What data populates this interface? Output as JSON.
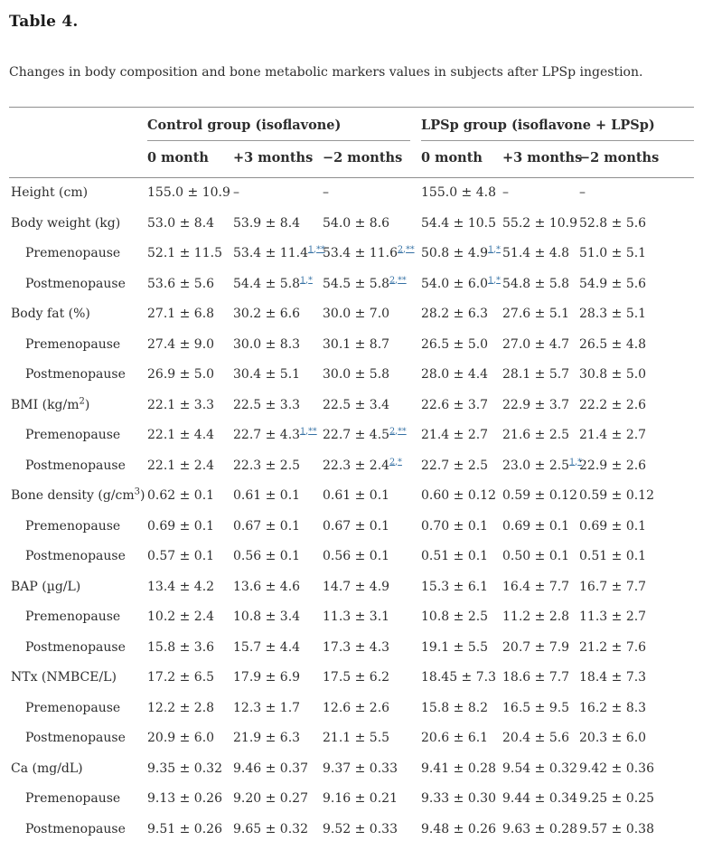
{
  "colors": {
    "text": "#2d2d2d",
    "rule": "#8f8f8f",
    "link": "#3470a4",
    "background": "#ffffff"
  },
  "table": {
    "title": "Table 4.",
    "caption": "Changes in body composition and bone metabolic markers values in subjects after LPSp ingestion.",
    "groups": [
      {
        "label": "Control group (isoflavone)"
      },
      {
        "label": "LPSp group (isoflavone + LPSp)"
      }
    ],
    "columns": [
      "0 month",
      "+3 months",
      "−2 months",
      "0 month",
      "+3 months",
      "−2 months"
    ],
    "rows": [
      {
        "label": {
          "pre": "Height (cm)"
        },
        "indent": false,
        "cells": [
          "155.0 ± 10.9",
          "–",
          "–",
          "155.0 ± 4.8",
          "–",
          "–"
        ]
      },
      {
        "label": {
          "pre": "Body weight (kg)"
        },
        "indent": false,
        "cells": [
          "53.0 ± 8.4",
          "53.9 ± 8.4",
          "54.0 ± 8.6",
          "54.4 ± 10.5",
          "55.2 ± 10.9",
          "52.8 ± 5.6"
        ]
      },
      {
        "label": {
          "pre": "Premenopause"
        },
        "indent": true,
        "cells": [
          "52.1 ± 11.5",
          {
            "t": "53.4 ± 11.4",
            "sup": [
              "1",
              "**"
            ]
          },
          {
            "t": "53.4 ± 11.6",
            "sup": [
              "2",
              "**"
            ]
          },
          {
            "t": "50.8 ± 4.9",
            "sup": [
              "1",
              "*"
            ]
          },
          "51.4 ± 4.8",
          "51.0 ± 5.1"
        ]
      },
      {
        "label": {
          "pre": "Postmenopause"
        },
        "indent": true,
        "cells": [
          "53.6 ± 5.6",
          {
            "t": "54.4 ± 5.8",
            "sup": [
              "1",
              "*"
            ]
          },
          {
            "t": "54.5 ± 5.8",
            "sup": [
              "2",
              "**"
            ]
          },
          {
            "t": "54.0 ± 6.0",
            "sup": [
              "1",
              "*"
            ]
          },
          "54.8 ± 5.8",
          "54.9 ± 5.6"
        ]
      },
      {
        "label": {
          "pre": "Body fat (%)"
        },
        "indent": false,
        "cells": [
          "27.1 ± 6.8",
          "30.2 ± 6.6",
          "30.0 ± 7.0",
          "28.2 ± 6.3",
          "27.6 ± 5.1",
          "28.3 ± 5.1"
        ]
      },
      {
        "label": {
          "pre": "Premenopause"
        },
        "indent": true,
        "cells": [
          "27.4 ± 9.0",
          "30.0 ± 8.3",
          "30.1 ± 8.7",
          "26.5 ± 5.0",
          "27.0 ± 4.7",
          "26.5 ± 4.8"
        ]
      },
      {
        "label": {
          "pre": "Postmenopause"
        },
        "indent": true,
        "cells": [
          "26.9 ± 5.0",
          "30.4 ± 5.1",
          "30.0 ± 5.8",
          "28.0 ± 4.4",
          "28.1 ± 5.7",
          "30.8 ± 5.0"
        ]
      },
      {
        "label": {
          "pre": "BMI (kg/m",
          "sup": "2",
          "post": ")"
        },
        "indent": false,
        "cells": [
          "22.1 ± 3.3",
          "22.5 ± 3.3",
          "22.5 ± 3.4",
          "22.6 ± 3.7",
          "22.9 ± 3.7",
          "22.2 ± 2.6"
        ]
      },
      {
        "label": {
          "pre": "Premenopause"
        },
        "indent": true,
        "cells": [
          "22.1 ± 4.4",
          {
            "t": "22.7 ± 4.3",
            "sup": [
              "1",
              "**"
            ]
          },
          {
            "t": "22.7 ± 4.5",
            "sup": [
              "2",
              "**"
            ]
          },
          "21.4 ± 2.7",
          "21.6 ± 2.5",
          "21.4 ± 2.7"
        ]
      },
      {
        "label": {
          "pre": "Postmenopause"
        },
        "indent": true,
        "cells": [
          "22.1 ± 2.4",
          "22.3 ± 2.5",
          {
            "t": "22.3 ± 2.4",
            "sup": [
              "2",
              "*"
            ]
          },
          "22.7 ± 2.5",
          {
            "t": "23.0 ± 2.5",
            "sup": [
              "1",
              "*"
            ]
          },
          "22.9 ± 2.6"
        ]
      },
      {
        "label": {
          "pre": "Bone density (g/cm",
          "sup": "3",
          "post": ")"
        },
        "indent": false,
        "cells": [
          "0.62 ± 0.1",
          "0.61 ± 0.1",
          "0.61 ± 0.1",
          "0.60 ± 0.12",
          "0.59 ± 0.12",
          "0.59 ± 0.12"
        ]
      },
      {
        "label": {
          "pre": "Premenopause"
        },
        "indent": true,
        "cells": [
          "0.69 ± 0.1",
          "0.67 ± 0.1",
          "0.67 ± 0.1",
          "0.70 ± 0.1",
          "0.69 ± 0.1",
          "0.69 ± 0.1"
        ]
      },
      {
        "label": {
          "pre": "Postmenopause"
        },
        "indent": true,
        "cells": [
          "0.57 ± 0.1",
          "0.56 ± 0.1",
          "0.56 ± 0.1",
          "0.51 ± 0.1",
          "0.50 ± 0.1",
          "0.51 ± 0.1"
        ]
      },
      {
        "label": {
          "pre": "BAP (µg/L)"
        },
        "indent": false,
        "cells": [
          "13.4 ± 4.2",
          "13.6 ± 4.6",
          "14.7 ± 4.9",
          "15.3 ± 6.1",
          "16.4 ± 7.7",
          "16.7 ± 7.7"
        ]
      },
      {
        "label": {
          "pre": "Premenopause"
        },
        "indent": true,
        "cells": [
          "10.2 ± 2.4",
          "10.8 ± 3.4",
          "11.3 ± 3.1",
          "10.8 ± 2.5",
          "11.2 ± 2.8",
          "11.3 ± 2.7"
        ]
      },
      {
        "label": {
          "pre": "Postmenopause"
        },
        "indent": true,
        "cells": [
          "15.8 ± 3.6",
          "15.7 ± 4.4",
          "17.3 ± 4.3",
          "19.1 ± 5.5",
          "20.7 ± 7.9",
          "21.2 ± 7.6"
        ]
      },
      {
        "label": {
          "pre": "NTx (NMBCE/L)"
        },
        "indent": false,
        "cells": [
          "17.2 ± 6.5",
          "17.9 ± 6.9",
          "17.5 ± 6.2",
          "18.45 ± 7.3",
          "18.6 ± 7.7",
          "18.4 ± 7.3"
        ]
      },
      {
        "label": {
          "pre": "Premenopause"
        },
        "indent": true,
        "cells": [
          "12.2 ± 2.8",
          "12.3 ± 1.7",
          "12.6 ± 2.6",
          "15.8 ± 8.2",
          "16.5 ± 9.5",
          "16.2 ± 8.3"
        ]
      },
      {
        "label": {
          "pre": "Postmenopause"
        },
        "indent": true,
        "cells": [
          "20.9 ± 6.0",
          "21.9 ± 6.3",
          "21.1 ± 5.5",
          "20.6 ± 6.1",
          "20.4 ± 5.6",
          "20.3 ± 6.0"
        ]
      },
      {
        "label": {
          "pre": "Ca (mg/dL)"
        },
        "indent": false,
        "cells": [
          "9.35 ± 0.32",
          "9.46 ± 0.37",
          "9.37 ± 0.33",
          "9.41 ± 0.28",
          "9.54 ± 0.32",
          "9.42 ± 0.36"
        ]
      },
      {
        "label": {
          "pre": "Premenopause"
        },
        "indent": true,
        "cells": [
          "9.13 ± 0.26",
          "9.20 ± 0.27",
          "9.16 ± 0.21",
          "9.33 ± 0.30",
          "9.44 ± 0.34",
          "9.25 ± 0.25"
        ]
      },
      {
        "label": {
          "pre": "Postmenopause"
        },
        "indent": true,
        "cells": [
          "9.51 ± 0.26",
          "9.65 ± 0.32",
          "9.52 ± 0.33",
          "9.48 ± 0.26",
          "9.63 ± 0.28",
          "9.57 ± 0.38"
        ]
      }
    ]
  }
}
